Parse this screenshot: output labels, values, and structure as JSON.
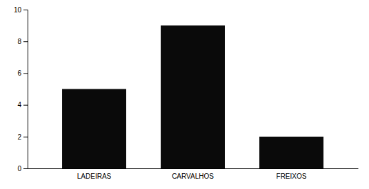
{
  "chart_data": {
    "type": "bar",
    "categories": [
      "LADEIRAS",
      "CARVALHOS",
      "FREIXOS"
    ],
    "values": [
      5,
      9,
      2
    ],
    "color": "#0a0a0a",
    "ylim": [
      0,
      10
    ],
    "yticks": [
      0,
      2,
      4,
      6,
      8,
      10
    ]
  }
}
